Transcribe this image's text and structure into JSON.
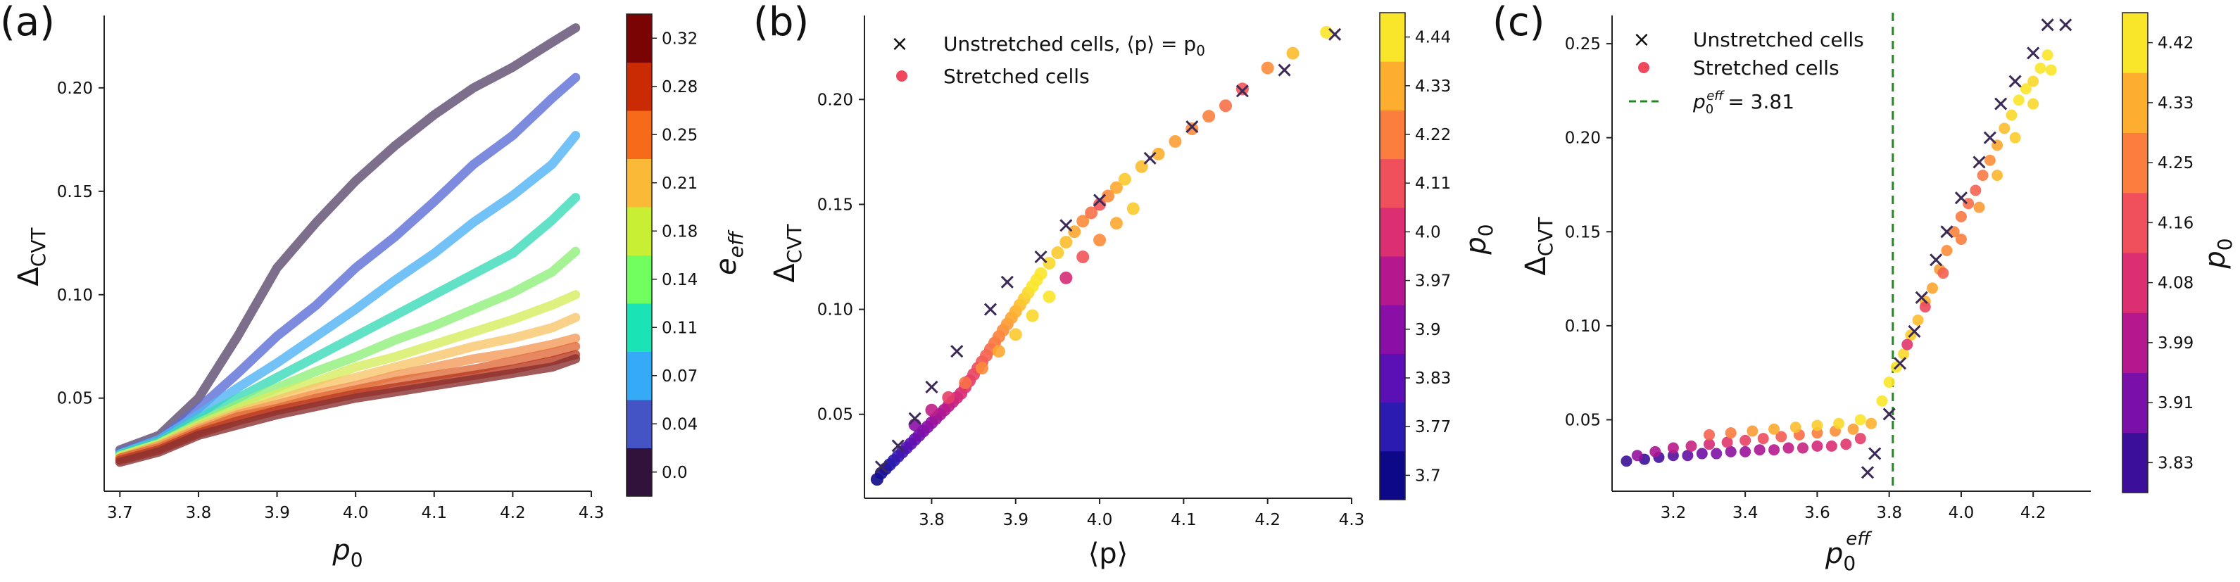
{
  "panels": {
    "a": {
      "label": "(a)",
      "xlabel": "p",
      "xlabel_sub": "0",
      "ylabel": "Δ",
      "ylabel_sub": "CVT",
      "colorbar_label": "e",
      "colorbar_label_sub": "eff"
    },
    "b": {
      "label": "(b)",
      "xlabel": "⟨p⟩",
      "ylabel": "Δ",
      "ylabel_sub": "CVT",
      "colorbar_label": "p",
      "colorbar_label_sub": "0",
      "legend": {
        "unstretched": "Unstretched cells, ⟨p⟩ = p",
        "unstretched_sub": "0",
        "stretched": "Stretched cells"
      }
    },
    "c": {
      "label": "(c)",
      "xlabel": "p",
      "xlabel_sub": "0",
      "xlabel_sup": "eff",
      "ylabel": "Δ",
      "ylabel_sub": "CVT",
      "colorbar_label": "p",
      "colorbar_label_sub": "0",
      "legend": {
        "unstretched": "Unstretched cells",
        "stretched": "Stretched cells",
        "threshold": "p",
        "threshold_sub": "0",
        "threshold_sup": "eff",
        "threshold_value": "= 3.81"
      }
    }
  },
  "chart_data": [
    {
      "type": "line",
      "title": "",
      "xlabel": "p0",
      "ylabel": "Δ_CVT",
      "xlim": [
        3.68,
        4.3
      ],
      "ylim": [
        0.005,
        0.235
      ],
      "xticks": [
        "3.7",
        "3.8",
        "3.9",
        "4.0",
        "4.1",
        "4.2",
        "4.3"
      ],
      "yticks": [
        "0.05",
        "0.10",
        "0.15",
        "0.20"
      ],
      "x": [
        3.7,
        3.75,
        3.8,
        3.85,
        3.9,
        3.95,
        4.0,
        4.05,
        4.1,
        4.15,
        4.2,
        4.25,
        4.28
      ],
      "colorbar": {
        "label": "e_eff",
        "ticks": [
          "0.0",
          "0.04",
          "0.07",
          "0.11",
          "0.14",
          "0.18",
          "0.21",
          "0.25",
          "0.28",
          "0.32"
        ],
        "colors": [
          "#30123b",
          "#4454c4",
          "#35abf8",
          "#1ae4b6",
          "#71fe5f",
          "#c8ef34",
          "#fbb938",
          "#f66b19",
          "#ca2a04",
          "#7a0403"
        ]
      },
      "series": [
        {
          "name": "e_eff=0.0",
          "color": "#5c4a6e",
          "values": [
            0.025,
            0.032,
            0.05,
            0.08,
            0.113,
            0.135,
            0.155,
            0.172,
            0.187,
            0.2,
            0.21,
            0.222,
            0.229
          ]
        },
        {
          "name": "e_eff=0.04",
          "color": "#5b6ed6",
          "values": [
            0.024,
            0.03,
            0.045,
            0.062,
            0.08,
            0.095,
            0.113,
            0.128,
            0.145,
            0.163,
            0.177,
            0.195,
            0.205
          ]
        },
        {
          "name": "e_eff=0.07",
          "color": "#4fb2f5",
          "values": [
            0.023,
            0.03,
            0.042,
            0.055,
            0.067,
            0.08,
            0.093,
            0.107,
            0.12,
            0.135,
            0.148,
            0.163,
            0.177
          ]
        },
        {
          "name": "e_eff=0.11",
          "color": "#39d9b8",
          "values": [
            0.023,
            0.029,
            0.04,
            0.05,
            0.06,
            0.07,
            0.08,
            0.09,
            0.1,
            0.11,
            0.12,
            0.136,
            0.147
          ]
        },
        {
          "name": "e_eff=0.14",
          "color": "#8ff07a",
          "values": [
            0.022,
            0.028,
            0.038,
            0.047,
            0.055,
            0.063,
            0.07,
            0.078,
            0.085,
            0.093,
            0.101,
            0.111,
            0.121
          ]
        },
        {
          "name": "e_eff=0.18",
          "color": "#d6ec5c",
          "values": [
            0.022,
            0.028,
            0.037,
            0.045,
            0.052,
            0.058,
            0.065,
            0.07,
            0.076,
            0.082,
            0.088,
            0.095,
            0.1
          ]
        },
        {
          "name": "e_eff=0.21",
          "color": "#f8c66a",
          "values": [
            0.021,
            0.027,
            0.036,
            0.043,
            0.049,
            0.055,
            0.06,
            0.065,
            0.07,
            0.075,
            0.079,
            0.084,
            0.089
          ]
        },
        {
          "name": "e_eff=0.25",
          "color": "#f49a5a",
          "values": [
            0.021,
            0.027,
            0.035,
            0.042,
            0.047,
            0.052,
            0.056,
            0.061,
            0.065,
            0.069,
            0.072,
            0.076,
            0.079
          ]
        },
        {
          "name": "e_eff=0.28",
          "color": "#e06a3a",
          "values": [
            0.021,
            0.026,
            0.034,
            0.041,
            0.045,
            0.05,
            0.054,
            0.058,
            0.061,
            0.064,
            0.068,
            0.072,
            0.075
          ]
        },
        {
          "name": "e_eff=0.32",
          "color": "#b83a22",
          "values": [
            0.02,
            0.025,
            0.033,
            0.039,
            0.044,
            0.048,
            0.052,
            0.055,
            0.058,
            0.061,
            0.064,
            0.068,
            0.071
          ]
        },
        {
          "name": "e_eff=0.34",
          "color": "#8a3030",
          "values": [
            0.019,
            0.024,
            0.032,
            0.037,
            0.042,
            0.046,
            0.05,
            0.053,
            0.056,
            0.059,
            0.062,
            0.065,
            0.069
          ]
        }
      ]
    },
    {
      "type": "scatter",
      "title": "",
      "xlabel": "⟨p⟩",
      "ylabel": "Δ_CVT",
      "xlim": [
        3.72,
        4.3
      ],
      "ylim": [
        0.01,
        0.24
      ],
      "xticks": [
        "3.8",
        "3.9",
        "4.0",
        "4.1",
        "4.2",
        "4.3"
      ],
      "yticks": [
        "0.05",
        "0.10",
        "0.15",
        "0.20"
      ],
      "colorbar": {
        "label": "p0",
        "ticks": [
          "3.7",
          "3.77",
          "3.83",
          "3.9",
          "3.97",
          "4.0",
          "4.11",
          "4.22",
          "4.33",
          "4.44"
        ],
        "colors": [
          "#0d0887",
          "#2b1bb0",
          "#5a10b4",
          "#8a0fa6",
          "#b5188e",
          "#db2f72",
          "#f0505b",
          "#fb7e3f",
          "#fdae2e",
          "#f9e52a"
        ]
      },
      "series": [
        {
          "name": "Unstretched cells",
          "marker": "x",
          "x": [
            3.74,
            3.76,
            3.78,
            3.8,
            3.83,
            3.87,
            3.89,
            3.93,
            3.96,
            4.0,
            4.06,
            4.11,
            4.17,
            4.22,
            4.28
          ],
          "y": [
            0.025,
            0.035,
            0.048,
            0.063,
            0.08,
            0.1,
            0.113,
            0.125,
            0.14,
            0.152,
            0.172,
            0.187,
            0.204,
            0.214,
            0.231
          ]
        },
        {
          "name": "Stretched cells",
          "marker": "o",
          "x": [
            3.735,
            3.74,
            3.745,
            3.75,
            3.755,
            3.76,
            3.765,
            3.77,
            3.775,
            3.78,
            3.785,
            3.79,
            3.795,
            3.8,
            3.805,
            3.81,
            3.815,
            3.82,
            3.825,
            3.83,
            3.835,
            3.84,
            3.845,
            3.85,
            3.855,
            3.86,
            3.865,
            3.87,
            3.875,
            3.88,
            3.885,
            3.89,
            3.895,
            3.9,
            3.905,
            3.91,
            3.915,
            3.92,
            3.925,
            3.93,
            3.94,
            3.95,
            3.96,
            3.97,
            3.98,
            3.99,
            4.0,
            4.01,
            4.02,
            4.03,
            4.05,
            4.07,
            4.09,
            4.11,
            4.13,
            4.15,
            4.17,
            4.2,
            4.23,
            4.27,
            3.78,
            3.8,
            3.82,
            3.84,
            3.86,
            3.88,
            3.9,
            3.92,
            3.94,
            3.96,
            3.98,
            4.0,
            4.02,
            4.04
          ],
          "y": [
            0.019,
            0.022,
            0.024,
            0.026,
            0.028,
            0.03,
            0.032,
            0.034,
            0.036,
            0.038,
            0.04,
            0.042,
            0.044,
            0.046,
            0.048,
            0.05,
            0.052,
            0.054,
            0.056,
            0.058,
            0.06,
            0.063,
            0.066,
            0.069,
            0.072,
            0.075,
            0.078,
            0.081,
            0.084,
            0.087,
            0.09,
            0.093,
            0.096,
            0.099,
            0.102,
            0.105,
            0.108,
            0.111,
            0.114,
            0.117,
            0.122,
            0.127,
            0.132,
            0.137,
            0.142,
            0.146,
            0.15,
            0.154,
            0.158,
            0.162,
            0.168,
            0.174,
            0.18,
            0.186,
            0.192,
            0.197,
            0.205,
            0.215,
            0.222,
            0.232,
            0.045,
            0.052,
            0.058,
            0.065,
            0.072,
            0.08,
            0.088,
            0.097,
            0.106,
            0.115,
            0.125,
            0.133,
            0.141,
            0.148
          ],
          "p0": [
            3.7,
            3.72,
            3.74,
            3.76,
            3.78,
            3.8,
            3.82,
            3.84,
            3.86,
            3.88,
            3.9,
            3.92,
            3.94,
            3.96,
            3.98,
            4.0,
            4.02,
            4.04,
            4.06,
            4.08,
            4.1,
            4.12,
            4.14,
            4.16,
            4.18,
            4.2,
            4.22,
            4.24,
            4.26,
            4.28,
            4.3,
            4.32,
            4.34,
            4.36,
            4.38,
            4.4,
            4.42,
            4.44,
            4.44,
            4.44,
            4.42,
            4.4,
            4.38,
            4.35,
            4.3,
            4.25,
            4.2,
            4.3,
            4.35,
            4.4,
            4.38,
            4.36,
            4.33,
            4.3,
            4.28,
            4.25,
            4.2,
            4.3,
            4.38,
            4.44,
            3.95,
            4.05,
            4.15,
            4.25,
            4.3,
            4.35,
            4.4,
            4.42,
            4.44,
            4.1,
            4.2,
            4.3,
            4.35,
            4.4
          ]
        }
      ]
    },
    {
      "type": "scatter",
      "title": "",
      "xlabel": "p0^eff",
      "ylabel": "Δ_CVT",
      "xlim": [
        3.03,
        4.36
      ],
      "ylim": [
        0.012,
        0.265
      ],
      "xticks": [
        "3.2",
        "3.4",
        "3.6",
        "3.8",
        "4.0",
        "4.2"
      ],
      "yticks": [
        "0.05",
        "0.10",
        "0.15",
        "0.20",
        "0.25"
      ],
      "threshold": 3.81,
      "colorbar": {
        "label": "p0",
        "ticks": [
          "3.83",
          "3.91",
          "3.99",
          "4.08",
          "4.16",
          "4.25",
          "4.33",
          "4.42"
        ],
        "colors": [
          "#3b0f99",
          "#7a10a8",
          "#b5188e",
          "#db2f72",
          "#f0505b",
          "#fb7e3f",
          "#fdae2e",
          "#f9e52a"
        ]
      },
      "series": [
        {
          "name": "Unstretched cells",
          "marker": "x",
          "x": [
            3.74,
            3.76,
            3.8,
            3.83,
            3.87,
            3.89,
            3.93,
            3.96,
            4.0,
            4.05,
            4.08,
            4.11,
            4.15,
            4.2,
            4.24,
            4.29
          ],
          "y": [
            0.022,
            0.032,
            0.053,
            0.08,
            0.097,
            0.115,
            0.135,
            0.15,
            0.168,
            0.187,
            0.2,
            0.218,
            0.23,
            0.245,
            0.26,
            0.26
          ]
        },
        {
          "name": "Stretched cells",
          "marker": "o",
          "x": [
            3.07,
            3.12,
            3.16,
            3.2,
            3.24,
            3.28,
            3.32,
            3.36,
            3.4,
            3.44,
            3.48,
            3.52,
            3.56,
            3.6,
            3.64,
            3.68,
            3.72,
            3.1,
            3.15,
            3.2,
            3.25,
            3.3,
            3.35,
            3.4,
            3.45,
            3.5,
            3.55,
            3.6,
            3.65,
            3.7,
            3.75,
            3.3,
            3.36,
            3.42,
            3.48,
            3.54,
            3.6,
            3.66,
            3.72,
            3.78,
            3.8,
            3.82,
            3.84,
            3.86,
            3.88,
            3.9,
            3.92,
            3.94,
            3.96,
            3.98,
            4.0,
            4.02,
            4.04,
            4.06,
            4.08,
            4.1,
            4.12,
            4.14,
            4.16,
            4.18,
            4.2,
            4.22,
            4.24,
            3.85,
            3.9,
            3.95,
            4.0,
            4.05,
            4.1,
            4.15,
            4.2,
            4.25
          ],
          "y": [
            0.028,
            0.029,
            0.03,
            0.031,
            0.031,
            0.032,
            0.032,
            0.033,
            0.033,
            0.034,
            0.034,
            0.035,
            0.035,
            0.036,
            0.036,
            0.037,
            0.04,
            0.031,
            0.033,
            0.035,
            0.036,
            0.037,
            0.038,
            0.039,
            0.04,
            0.041,
            0.042,
            0.043,
            0.044,
            0.045,
            0.048,
            0.042,
            0.043,
            0.044,
            0.045,
            0.046,
            0.047,
            0.048,
            0.05,
            0.06,
            0.07,
            0.078,
            0.085,
            0.095,
            0.103,
            0.113,
            0.12,
            0.13,
            0.14,
            0.15,
            0.158,
            0.165,
            0.172,
            0.18,
            0.188,
            0.196,
            0.205,
            0.212,
            0.22,
            0.226,
            0.23,
            0.237,
            0.244,
            0.09,
            0.11,
            0.128,
            0.146,
            0.163,
            0.18,
            0.2,
            0.218,
            0.236
          ],
          "p0": [
            3.8,
            3.82,
            3.84,
            3.86,
            3.88,
            3.9,
            3.92,
            3.94,
            3.96,
            3.98,
            4.0,
            4.02,
            4.04,
            4.06,
            4.08,
            4.1,
            4.12,
            3.95,
            3.98,
            4.01,
            4.04,
            4.07,
            4.1,
            4.13,
            4.16,
            4.19,
            4.22,
            4.25,
            4.28,
            4.31,
            4.34,
            4.2,
            4.25,
            4.3,
            4.33,
            4.36,
            4.38,
            4.4,
            4.42,
            4.44,
            4.44,
            4.42,
            4.4,
            4.38,
            4.36,
            4.34,
            4.32,
            4.3,
            4.28,
            4.26,
            4.24,
            4.22,
            4.2,
            4.24,
            4.28,
            4.32,
            4.36,
            4.4,
            4.42,
            4.44,
            4.4,
            4.42,
            4.44,
            4.1,
            4.15,
            4.2,
            4.25,
            4.3,
            4.35,
            4.38,
            4.4,
            4.42
          ]
        }
      ]
    }
  ]
}
